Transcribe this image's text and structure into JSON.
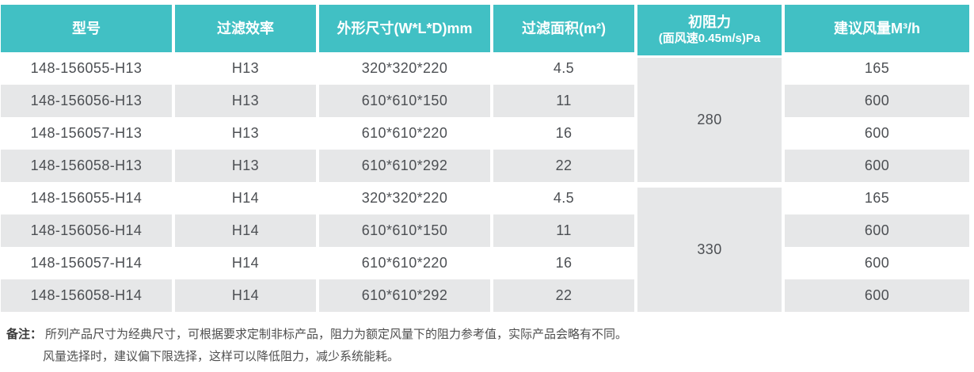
{
  "theme": {
    "header_teal": "#41c0c4",
    "row_gray": "#e6e7e8",
    "header_text": "#ffffff",
    "body_text": "#4c4f53"
  },
  "table": {
    "headers": [
      {
        "label": "型号"
      },
      {
        "label": "过滤效率"
      },
      {
        "label": "外形尺寸(W*L*D)mm"
      },
      {
        "label": "过滤面积(m²)"
      },
      {
        "label": "初阻力",
        "sub": "(面风速0.45m/s)Pa"
      },
      {
        "label": "建议风量M³/h"
      }
    ],
    "rows": [
      {
        "model": "148-156055-H13",
        "efficiency": "H13",
        "dimensions": "320*320*220",
        "area": "4.5",
        "airflow": "165"
      },
      {
        "model": "148-156056-H13",
        "efficiency": "H13",
        "dimensions": "610*610*150",
        "area": "11",
        "airflow": "600"
      },
      {
        "model": "148-156057-H13",
        "efficiency": "H13",
        "dimensions": "610*610*220",
        "area": "16",
        "airflow": "600"
      },
      {
        "model": "148-156058-H13",
        "efficiency": "H13",
        "dimensions": "610*610*292",
        "area": "22",
        "airflow": "600"
      },
      {
        "model": "148-156055-H14",
        "efficiency": "H14",
        "dimensions": "320*320*220",
        "area": "4.5",
        "airflow": "165"
      },
      {
        "model": "148-156056-H14",
        "efficiency": "H14",
        "dimensions": "610*610*150",
        "area": "11",
        "airflow": "600"
      },
      {
        "model": "148-156057-H14",
        "efficiency": "H14",
        "dimensions": "610*610*220",
        "area": "16",
        "airflow": "600"
      },
      {
        "model": "148-156058-H14",
        "efficiency": "H14",
        "dimensions": "610*610*292",
        "area": "22",
        "airflow": "600"
      }
    ],
    "resistance_groups": [
      {
        "value": "280"
      },
      {
        "value": "330"
      }
    ]
  },
  "notes": {
    "label": "备注：",
    "line1": "所列产品尺寸为经典尺寸，可根据要求定制非标产品，阻力为额定风量下的阻力参考值，实际产品会略有不同。",
    "line2": "风量选择时，建议偏下限选择，这样可以降低阻力，减少系统能耗。"
  }
}
